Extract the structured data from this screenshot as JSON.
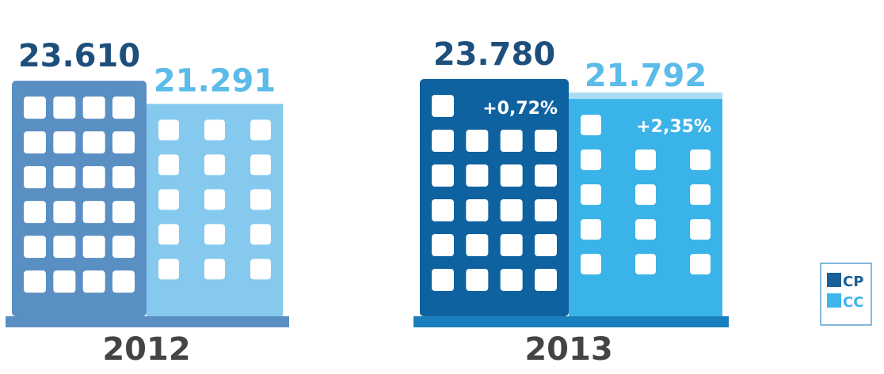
{
  "chart_data": {
    "type": "bar",
    "categories": [
      "2012",
      "2013"
    ],
    "series": [
      {
        "name": "CP",
        "color": "#1a5f96",
        "colors": [
          "#5a8fc3",
          "#0f62a0"
        ],
        "label_color": "#1d4f7c",
        "values": [
          23610,
          23780
        ],
        "value_labels": [
          "23.610",
          "23.780"
        ]
      },
      {
        "name": "CC",
        "color": "#3bb5ea",
        "colors": [
          "#86c9ef",
          "#3ab3e8"
        ],
        "label_color": "#5bbbe9",
        "values": [
          21291,
          21792
        ],
        "value_labels": [
          "21.291",
          "21.792"
        ]
      }
    ],
    "annotations": [
      {
        "text": "+0,72%",
        "category": "2013",
        "series": "CP"
      },
      {
        "text": "+2,35%",
        "category": "2013",
        "series": "CC"
      }
    ],
    "legend": "bottom-right"
  }
}
